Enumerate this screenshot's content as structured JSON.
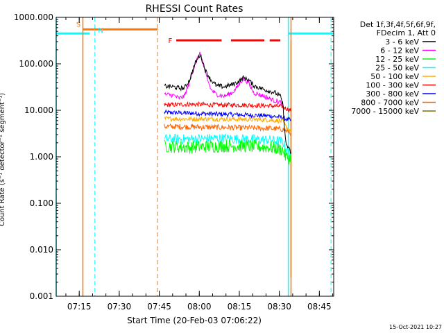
{
  "chart_data": {
    "type": "line",
    "title": "RHESSI Count Rates",
    "xlabel": "Start Time (20-Feb-03 07:06:22)",
    "ylabel": "Count Rate (s⁻¹ detector⁻¹ segment⁻¹)",
    "yscale": "log",
    "ylim": [
      0.001,
      1000
    ],
    "xlim_minutes": [
      0,
      104
    ],
    "x_ticks": [
      "07:15",
      "07:30",
      "07:45",
      "08:00",
      "08:15",
      "08:30",
      "08:45"
    ],
    "x_tick_minutes": [
      8.63,
      23.63,
      38.63,
      53.63,
      68.63,
      83.63,
      98.63
    ],
    "y_ticks": [
      "1000.000",
      "100.000",
      "10.000",
      "1.000",
      "0.100",
      "0.010",
      "0.001"
    ],
    "y_tick_values": [
      1000,
      100,
      10,
      1,
      0.1,
      0.01,
      0.001
    ],
    "grid": false,
    "legend_position": "top-right",
    "legend_header": [
      "Det 1f,3f,4f,5f,6f,9f,",
      "FDecim 1, Att 0"
    ],
    "series": [
      {
        "name": "3 - 6 keV",
        "color": "#000000",
        "x": [
          40.5,
          44,
          46,
          48,
          50,
          52,
          54,
          56,
          58,
          60,
          63,
          66,
          68,
          70,
          72,
          74,
          78,
          82,
          84,
          85,
          86,
          88
        ],
        "values": [
          33,
          32,
          30,
          30,
          45,
          100,
          160,
          70,
          45,
          34,
          32,
          36,
          40,
          50,
          46,
          34,
          28,
          24,
          20,
          13,
          2.0,
          1.2
        ]
      },
      {
        "name": "6 - 12 keV",
        "color": "#ff00ff",
        "x": [
          40.5,
          44,
          46,
          48,
          50,
          52,
          54,
          56,
          58,
          60,
          63,
          66,
          68,
          70,
          72,
          74,
          78,
          82,
          84,
          85
        ],
        "values": [
          22,
          21,
          18,
          20,
          40,
          100,
          170,
          60,
          28,
          22,
          20,
          24,
          32,
          48,
          40,
          24,
          20,
          16,
          15,
          12
        ]
      },
      {
        "name": "12 - 25 keV",
        "color": "#00ff00",
        "x": [
          40.5,
          50,
          60,
          70,
          80,
          85,
          86,
          88
        ],
        "values": [
          1.7,
          1.6,
          1.7,
          1.7,
          1.6,
          1.4,
          1.0,
          0.9
        ]
      },
      {
        "name": "25 - 50 keV",
        "color": "#00ffff",
        "x": [
          40.5,
          50,
          60,
          70,
          80,
          85,
          86,
          88
        ],
        "values": [
          2.4,
          2.4,
          2.5,
          2.4,
          2.3,
          2.1,
          1.5,
          1.2
        ]
      },
      {
        "name": "50 - 100 keV",
        "color": "#ffaa00",
        "x": [
          40.5,
          50,
          60,
          70,
          80,
          85,
          86,
          88
        ],
        "values": [
          6.6,
          6.5,
          6.5,
          6.4,
          6.2,
          5.8,
          4.5,
          3.5
        ]
      },
      {
        "name": "100 - 300 keV",
        "color": "#ff0000",
        "x": [
          40.5,
          50,
          60,
          70,
          80,
          85,
          86,
          88
        ],
        "values": [
          13,
          13.5,
          13,
          13,
          12.5,
          12,
          11,
          10
        ]
      },
      {
        "name": "300 - 800 keV",
        "color": "#0000ff",
        "x": [
          40.5,
          50,
          60,
          70,
          80,
          85,
          86,
          88
        ],
        "values": [
          9,
          8.7,
          8.3,
          8,
          7.6,
          7,
          6.5,
          6
        ]
      },
      {
        "name": "800 - 7000 keV",
        "color": "#ff6600",
        "x": [
          40.5,
          50,
          60,
          70,
          80,
          85,
          86,
          88
        ],
        "values": [
          4.5,
          4.4,
          4.3,
          4.2,
          4.1,
          3.9,
          3.6,
          3.3
        ]
      },
      {
        "name": "7000 - 15000 keV",
        "color": "#7f6f00",
        "x": [],
        "values": []
      }
    ],
    "annotations": {
      "night": {
        "label": "N",
        "color": "#00ffff",
        "value": 450,
        "segments": [
          [
            0,
            12.5
          ],
          [
            87,
            104
          ]
        ],
        "solid_lines": [
          0,
          87
        ],
        "dashed_lines": [
          14.5,
          103
        ]
      },
      "saa": {
        "label": "S",
        "color": "#ff7700",
        "value": 550,
        "segments": [
          [
            10,
            38
          ]
        ],
        "solid_lines": [
          10,
          88
        ],
        "dashed_lines": [
          38
        ]
      },
      "flare": {
        "label": "F",
        "color": "#ff0000",
        "value": 320,
        "segments": [
          [
            45,
            62
          ],
          [
            65.5,
            78
          ],
          [
            80,
            84
          ]
        ]
      }
    },
    "timestamp": "15-Oct-2021 10:27"
  },
  "colors": {
    "axes": "#000000",
    "background": "#ffffff"
  }
}
